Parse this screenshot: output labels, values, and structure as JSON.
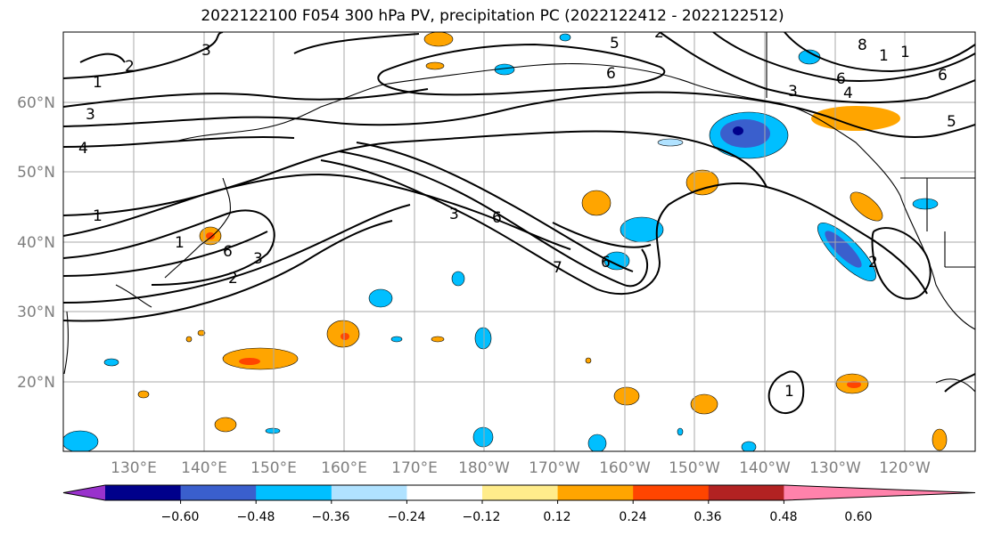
{
  "title": "2022122100 F054 300 hPa PV, precipitation PC (2022122412 - 2022122512)",
  "lat_labels": [
    "60°N",
    "50°N",
    "40°N",
    "30°N",
    "20°N"
  ],
  "lon_labels": [
    "130°E",
    "140°E",
    "150°E",
    "160°E",
    "170°E",
    "180°W",
    "170°W",
    "160°W",
    "150°W",
    "140°W",
    "130°W",
    "120°W"
  ],
  "colorbar": {
    "ticks": [
      "−0.60",
      "−0.48",
      "−0.36",
      "−0.24",
      "−0.12",
      "0.12",
      "0.24",
      "0.36",
      "0.48",
      "0.60"
    ],
    "colors": [
      "#9932cc",
      "#00008b",
      "#3a5fcd",
      "#00bfff",
      "#b0e2ff",
      "#ffffff",
      "#ffec8b",
      "#ffa500",
      "#ff4500",
      "#b22222",
      "#ff82ab"
    ]
  },
  "contour_labels": [
    "1",
    "2",
    "3",
    "3",
    "4",
    "5",
    "6",
    "6",
    "8",
    "1",
    "2",
    "3",
    "1",
    "6",
    "3",
    "4",
    "5",
    "6",
    "6",
    "1",
    "1",
    "2",
    "6",
    "3",
    "2",
    "7",
    "1"
  ]
}
